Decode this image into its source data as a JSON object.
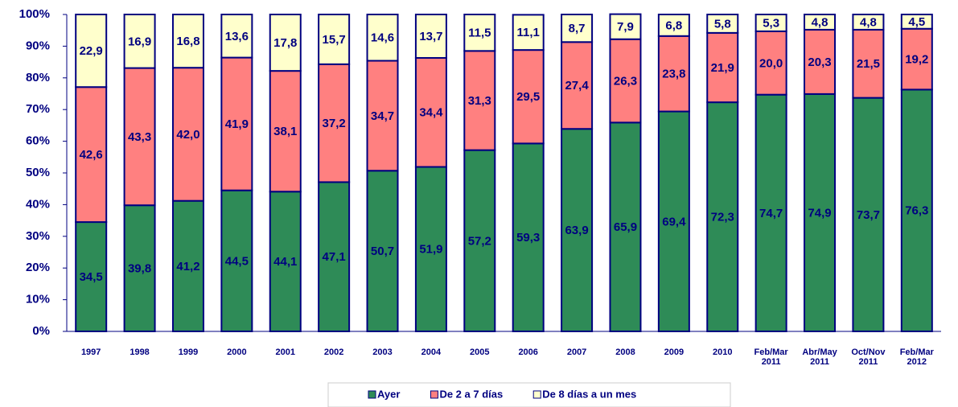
{
  "chart_data": {
    "type": "stacked_bar",
    "categories": [
      "1997",
      "1998",
      "1999",
      "2000",
      "2001",
      "2002",
      "2003",
      "2004",
      "2005",
      "2006",
      "2007",
      "2008",
      "2009",
      "2010",
      "Feb/Mar 2011",
      "Abr/May 2011",
      "Oct/Nov 2011",
      "Feb/Mar 2012"
    ],
    "series": [
      {
        "name": "Ayer",
        "color": "#2e8b57",
        "values": [
          34.5,
          39.8,
          41.2,
          44.5,
          44.1,
          47.1,
          50.7,
          51.9,
          57.2,
          59.3,
          63.9,
          65.9,
          69.4,
          72.3,
          74.7,
          74.9,
          73.7,
          76.3
        ],
        "value_labels": [
          "34,5",
          "39,8",
          "41,2",
          "44,5",
          "44,1",
          "47,1",
          "50,7",
          "51,9",
          "57,2",
          "59,3",
          "63,9",
          "65,9",
          "69,4",
          "72,3",
          "74,7",
          "74,9",
          "73,7",
          "76,3"
        ]
      },
      {
        "name": "De 2 a 7 días",
        "color": "#ff8080",
        "values": [
          42.6,
          43.3,
          42.0,
          41.9,
          38.1,
          37.2,
          34.7,
          34.4,
          31.3,
          29.5,
          27.4,
          26.3,
          23.8,
          21.9,
          20.0,
          20.3,
          21.5,
          19.2
        ],
        "value_labels": [
          "42,6",
          "43,3",
          "42,0",
          "41,9",
          "38,1",
          "37,2",
          "34,7",
          "34,4",
          "31,3",
          "29,5",
          "27,4",
          "26,3",
          "23,8",
          "21,9",
          "20,0",
          "20,3",
          "21,5",
          "19,2"
        ]
      },
      {
        "name": "De 8 días a un mes",
        "color": "#ffffcc",
        "values": [
          22.9,
          16.9,
          16.8,
          13.6,
          17.8,
          15.7,
          14.6,
          13.7,
          11.5,
          11.1,
          8.7,
          7.9,
          6.8,
          5.8,
          5.3,
          4.8,
          4.8,
          4.5
        ],
        "value_labels": [
          "22,9",
          "16,9",
          "16,8",
          "13,6",
          "17,8",
          "15,7",
          "14,6",
          "13,7",
          "11,5",
          "11,1",
          "8,7",
          "7,9",
          "6,8",
          "5,8",
          "5,3",
          "4,8",
          "4,8",
          "4,5"
        ]
      }
    ],
    "ylim": [
      0,
      100
    ],
    "yticks": [
      {
        "value": 0,
        "label": "0%"
      },
      {
        "value": 10,
        "label": "10%"
      },
      {
        "value": 20,
        "label": "20%"
      },
      {
        "value": 30,
        "label": "30%"
      },
      {
        "value": 40,
        "label": "40%"
      },
      {
        "value": 50,
        "label": "50%"
      },
      {
        "value": 60,
        "label": "60%"
      },
      {
        "value": 70,
        "label": "70%"
      },
      {
        "value": 80,
        "label": "80%"
      },
      {
        "value": 90,
        "label": "90%"
      },
      {
        "value": 100,
        "label": "100%"
      }
    ],
    "legend": "bottom",
    "grid": false
  }
}
